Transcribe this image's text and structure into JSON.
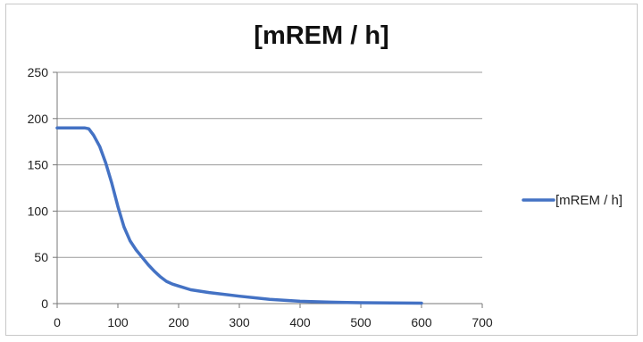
{
  "chart_data": {
    "type": "line",
    "title": "[mREM / h]",
    "xlabel": "",
    "ylabel": "",
    "xlim": [
      0,
      700
    ],
    "ylim": [
      0,
      250
    ],
    "x_ticks": [
      0,
      100,
      200,
      300,
      400,
      500,
      600,
      700
    ],
    "y_ticks": [
      0,
      50,
      100,
      150,
      200,
      250
    ],
    "grid": "horizontal",
    "legend_position": "right",
    "series": [
      {
        "name": "[mREM / h]",
        "color": "#4472C4",
        "x": [
          0,
          20,
          45,
          52,
          60,
          70,
          80,
          90,
          100,
          110,
          120,
          130,
          140,
          150,
          160,
          170,
          180,
          190,
          200,
          220,
          250,
          300,
          350,
          400,
          450,
          500,
          550,
          600
        ],
        "y": [
          190,
          190,
          190,
          189,
          182,
          170,
          152,
          130,
          105,
          83,
          68,
          58,
          50,
          42,
          35,
          29,
          24,
          21,
          19,
          15,
          12,
          8,
          4.5,
          2.5,
          1.5,
          1,
          0.8,
          0.5
        ]
      }
    ]
  }
}
